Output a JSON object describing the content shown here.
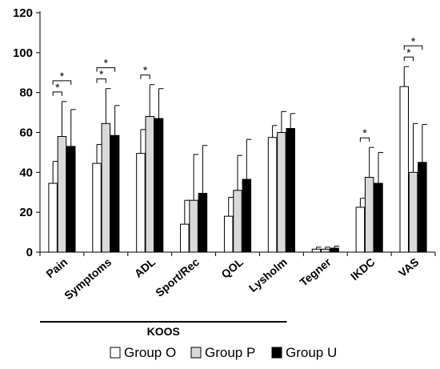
{
  "chart_data": {
    "type": "bar",
    "categories": [
      "Pain",
      "Symptoms",
      "ADL",
      "Sport/Rec",
      "QOL",
      "Lysholm",
      "Tegner",
      "IKDC",
      "VAS"
    ],
    "series": [
      {
        "name": "Group O",
        "color": "#ffffff",
        "values": [
          34.5,
          44.5,
          49.5,
          14,
          18,
          57.5,
          1.5,
          22.5,
          83
        ],
        "errors": [
          11,
          9.5,
          12,
          12,
          9.5,
          6,
          1,
          4.5,
          10
        ]
      },
      {
        "name": "Group P",
        "color": "#d9d9d9",
        "values": [
          58,
          64.5,
          68,
          26,
          31,
          60,
          1.5,
          37.5,
          40
        ],
        "errors": [
          17.5,
          17.5,
          16,
          23,
          17.5,
          10.5,
          1,
          15,
          24.5
        ]
      },
      {
        "name": "Group U",
        "color": "#000000",
        "values": [
          53,
          58.5,
          67,
          29.5,
          36.5,
          62,
          2,
          34.5,
          45
        ],
        "errors": [
          18.5,
          15,
          15,
          24,
          20,
          7.5,
          1,
          15.5,
          19
        ]
      }
    ],
    "yticks": [
      "0",
      "20",
      "40",
      "60",
      "80",
      "100",
      "120"
    ],
    "ylim": [
      0,
      120
    ],
    "group_label": "KOOS",
    "group_span": [
      "Pain",
      "QOL"
    ],
    "significance_symbol": "*",
    "significance": [
      {
        "category": "Pain",
        "from": 0,
        "to": 1
      },
      {
        "category": "Pain",
        "from": 0,
        "to": 2
      },
      {
        "category": "Symptoms",
        "from": 0,
        "to": 1
      },
      {
        "category": "Symptoms",
        "from": 0,
        "to": 2
      },
      {
        "category": "ADL",
        "from": 0,
        "to": 1
      },
      {
        "category": "IKDC",
        "from": 0,
        "to": 1
      },
      {
        "category": "VAS",
        "from": 0,
        "to": 1
      },
      {
        "category": "VAS",
        "from": 0,
        "to": 2
      }
    ],
    "legend": [
      "Group O",
      "Group P",
      "Group U"
    ],
    "legend_position": "bottom",
    "grid": false
  }
}
